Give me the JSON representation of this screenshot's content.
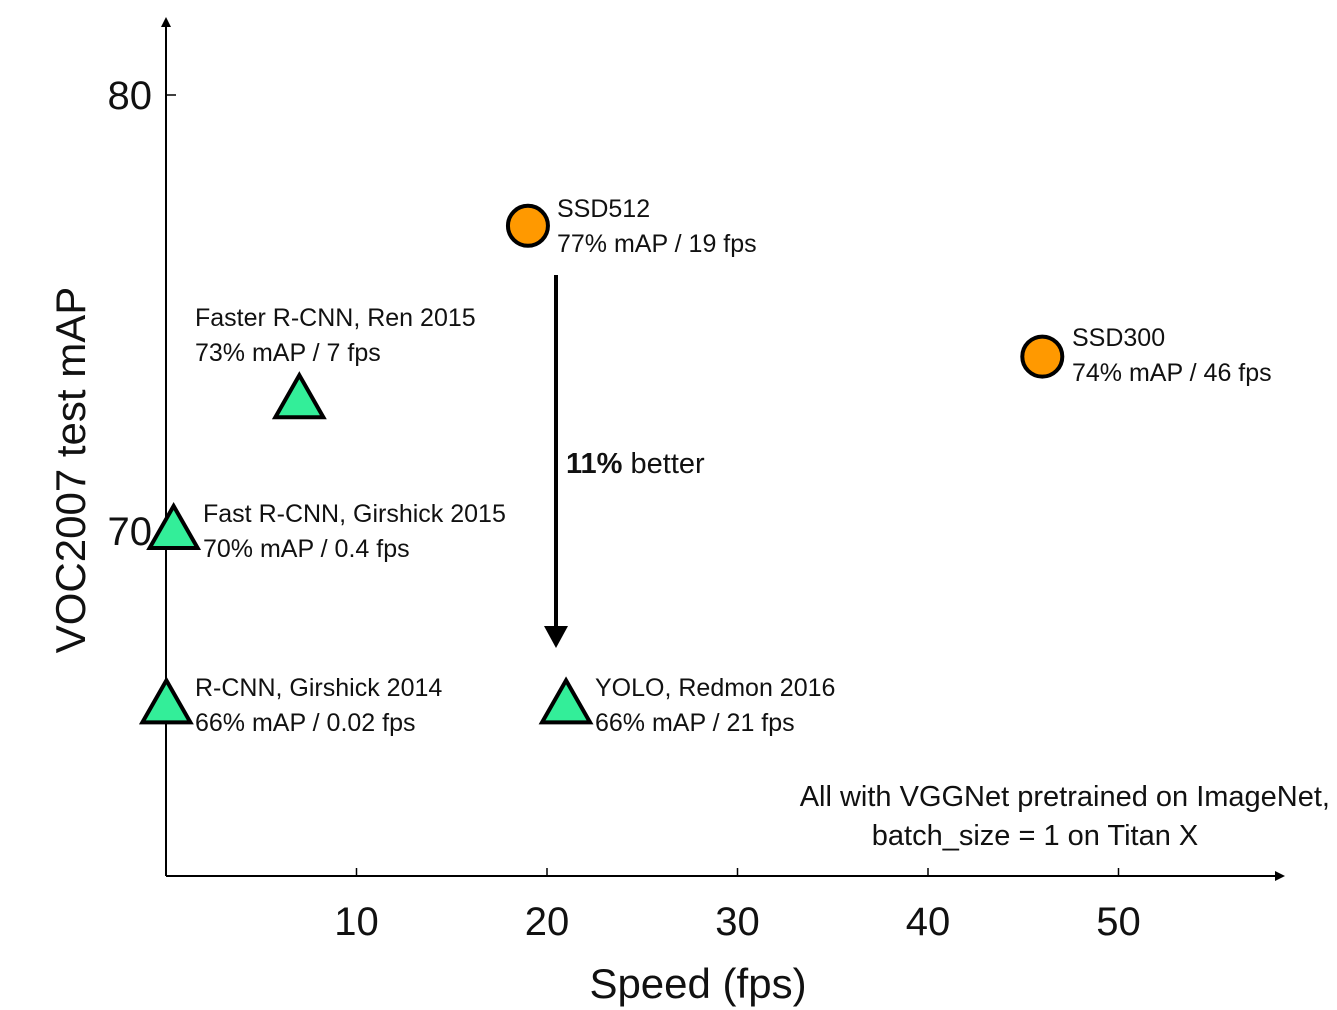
{
  "chart_data": {
    "type": "scatter",
    "xlabel": "Speed (fps)",
    "ylabel": "VOC2007 test mAP",
    "xlim": [
      0,
      59
    ],
    "ylim": [
      62,
      82
    ],
    "x_ticks": [
      10,
      20,
      30,
      40,
      50
    ],
    "y_ticks": [
      70,
      80
    ],
    "grid": false,
    "legend": "none",
    "colors": {
      "ssd": "#ff9900",
      "baseline": "#33ee99",
      "edge": "#000000"
    },
    "points": [
      {
        "name": "SSD512",
        "caption": "77% mAP / 19 fps",
        "x": 19,
        "y": 77,
        "marker": "circle"
      },
      {
        "name": "SSD300",
        "caption": "74% mAP / 46 fps",
        "x": 46,
        "y": 74,
        "marker": "circle"
      },
      {
        "name": "Faster R-CNN, Ren 2015",
        "caption": "73% mAP / 7 fps",
        "x": 7,
        "y": 73,
        "marker": "triangle"
      },
      {
        "name": "Fast R-CNN, Girshick 2015",
        "caption": "70% mAP / 0.4 fps",
        "x": 0.4,
        "y": 70,
        "marker": "triangle"
      },
      {
        "name": "R-CNN, Girshick 2014",
        "caption": "66% mAP / 0.02 fps",
        "x": 0.02,
        "y": 66,
        "marker": "triangle"
      },
      {
        "name": "YOLO, Redmon 2016",
        "caption": "66% mAP / 21 fps",
        "x": 21,
        "y": 66,
        "marker": "triangle"
      }
    ],
    "annotations": {
      "improvement_bold": "11%",
      "improvement_rest": " better",
      "note_line1": "All with VGGNet pretrained on ImageNet,",
      "note_line2": "batch_size = 1 on Titan X"
    }
  }
}
